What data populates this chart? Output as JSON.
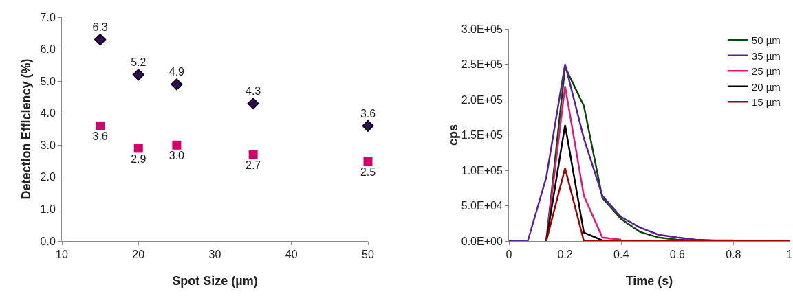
{
  "chart_data": [
    {
      "type": "scatter",
      "xlabel": "Spot Size (µm)",
      "ylabel": "Detection Efficiency (%)",
      "x": [
        15,
        20,
        25,
        35,
        50
      ],
      "series": [
        {
          "color": "#2e0a57",
          "marker": "diamond",
          "values": [
            6.3,
            5.2,
            4.9,
            4.3,
            3.6
          ],
          "value_labels": [
            "6.3",
            "5.2",
            "4.9",
            "4.3",
            "3.6"
          ]
        },
        {
          "color": "#d4006e",
          "marker": "square",
          "values": [
            3.6,
            2.9,
            3.0,
            2.7,
            2.5
          ],
          "value_labels": [
            "3.6",
            "2.9",
            "3.0",
            "2.7",
            "2.5"
          ]
        }
      ],
      "xlim": [
        10,
        50
      ],
      "xticks": [
        10,
        20,
        30,
        40,
        50
      ],
      "ylim": [
        0,
        7
      ],
      "yticks": [
        {
          "value": 0,
          "label": "0.0"
        },
        {
          "value": 1,
          "label": "1.0"
        },
        {
          "value": 2,
          "label": "2.0"
        },
        {
          "value": 3,
          "label": "3.0"
        },
        {
          "value": 4,
          "label": "4.0"
        },
        {
          "value": 5,
          "label": "5.0"
        },
        {
          "value": 6,
          "label": "6.0"
        },
        {
          "value": 7,
          "label": "7.0"
        }
      ],
      "grid": false,
      "legend": false
    },
    {
      "type": "line",
      "xlabel": "Time (s)",
      "ylabel": "cps",
      "x": [
        0,
        0.067,
        0.133,
        0.2,
        0.267,
        0.333,
        0.4,
        0.467,
        0.533,
        0.6,
        0.667,
        0.733,
        0.8,
        0.867,
        0.933,
        1
      ],
      "series": [
        {
          "name": "50 µm",
          "color": "#0b4a0b",
          "values": [
            null,
            null,
            0,
            246000,
            191000,
            61000,
            31000,
            13000,
            5000,
            2000,
            1000,
            null,
            null,
            null,
            null,
            null
          ]
        },
        {
          "name": "35 µm",
          "color": "#5a1f9a",
          "values": [
            0,
            0,
            90000,
            250000,
            145000,
            64000,
            34000,
            19000,
            9000,
            5000,
            2000,
            1000,
            1000,
            null,
            null,
            null
          ]
        },
        {
          "name": "25 µm",
          "color": "#e0197a",
          "values": [
            null,
            null,
            0,
            219000,
            64000,
            5000,
            2000,
            null,
            null,
            null,
            null,
            null,
            null,
            null,
            null,
            null
          ]
        },
        {
          "name": "20 µm",
          "color": "#000000",
          "values": [
            null,
            null,
            0,
            164000,
            12000,
            1000,
            null,
            null,
            null,
            null,
            null,
            null,
            null,
            null,
            null,
            null
          ]
        },
        {
          "name": "15 µm",
          "color": "#a00000",
          "values": [
            null,
            null,
            0,
            103000,
            0,
            0,
            0,
            0,
            0,
            0,
            0,
            0,
            0,
            0,
            0,
            0
          ]
        }
      ],
      "xlim": [
        0,
        1
      ],
      "xticks": [
        0,
        0.2,
        0.4,
        0.6,
        0.8,
        1
      ],
      "ylim": [
        0,
        300000
      ],
      "yticks": [
        {
          "value": 0,
          "label": "0.0E+00"
        },
        {
          "value": 50000,
          "label": "5.0E+04"
        },
        {
          "value": 100000,
          "label": "1.0E+05"
        },
        {
          "value": 150000,
          "label": "1.5E+05"
        },
        {
          "value": 200000,
          "label": "2.0E+05"
        },
        {
          "value": 250000,
          "label": "2.5E+05"
        },
        {
          "value": 300000,
          "label": "3.0E+05"
        }
      ],
      "grid": false,
      "legend": "top right",
      "marker": "none",
      "line_style": "solid"
    }
  ]
}
